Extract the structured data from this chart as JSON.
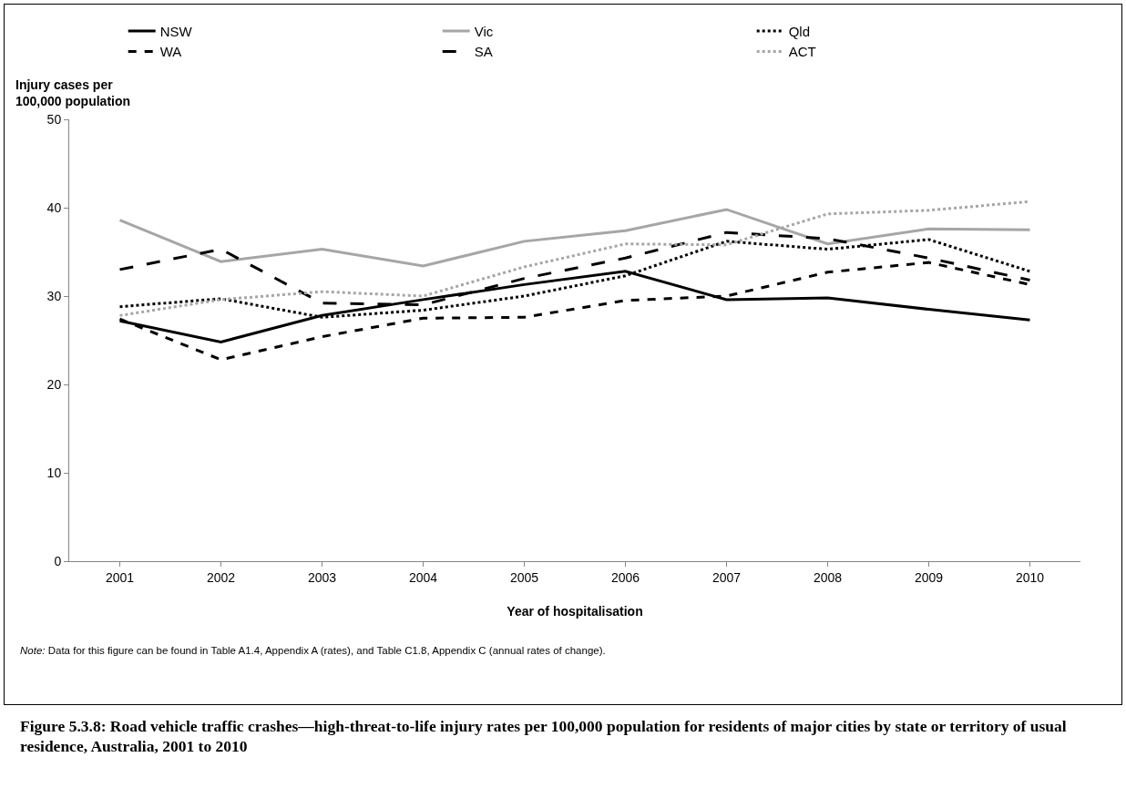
{
  "chart_data": {
    "type": "line",
    "title": "Figure 5.3.8: Road vehicle traffic crashes—high-threat-to-life injury rates per 100,000 population for residents of major cities by state or territory of usual residence, Australia, 2001 to 2010",
    "xlabel": "Year of hospitalisation",
    "ylabel": "Injury cases per 100,000 population",
    "categories": [
      "2001",
      "2002",
      "2003",
      "2004",
      "2005",
      "2006",
      "2007",
      "2008",
      "2009",
      "2010"
    ],
    "series": [
      {
        "name": "NSW",
        "color": "#000000",
        "line_style": "solid",
        "values": [
          27.2,
          24.8,
          27.8,
          29.6,
          31.3,
          32.8,
          29.6,
          29.8,
          28.5,
          27.3
        ]
      },
      {
        "name": "Vic",
        "color": "#a6a6a6",
        "line_style": "solid",
        "values": [
          38.6,
          33.9,
          35.3,
          33.4,
          36.2,
          37.4,
          39.8,
          35.9,
          37.6,
          37.5
        ]
      },
      {
        "name": "Qld",
        "color": "#000000",
        "line_style": "dotted",
        "values": [
          28.8,
          29.7,
          27.6,
          28.4,
          30.0,
          32.3,
          36.2,
          35.3,
          36.4,
          32.8
        ]
      },
      {
        "name": "WA",
        "color": "#000000",
        "line_style": "dashed",
        "values": [
          27.4,
          22.8,
          25.4,
          27.5,
          27.6,
          29.5,
          30.0,
          32.7,
          33.8,
          31.3
        ]
      },
      {
        "name": "SA",
        "color": "#000000",
        "line_style": "longdash",
        "values": [
          33.0,
          35.3,
          29.2,
          29.0,
          32.0,
          34.3,
          37.2,
          36.5,
          34.3,
          31.8
        ]
      },
      {
        "name": "ACT",
        "color": "#a6a6a6",
        "line_style": "dotted",
        "values": [
          27.8,
          29.6,
          30.5,
          30.0,
          33.3,
          35.9,
          35.8,
          39.3,
          39.7,
          40.7
        ]
      }
    ],
    "ylim": [
      0,
      50
    ],
    "yticks": [
      0,
      10,
      20,
      30,
      40,
      50
    ],
    "grid": false,
    "legend": "top",
    "marker": "none",
    "annotations": [
      "Note: Data for this figure can be found in Table A1.4, Appendix A (rates), and Table C1.8, Appendix C (annual rates of change)."
    ]
  }
}
